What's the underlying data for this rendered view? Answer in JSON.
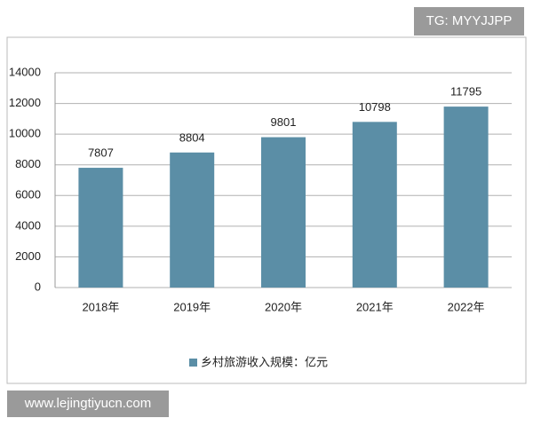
{
  "chart_data": {
    "type": "bar",
    "categories": [
      "2018年",
      "2019年",
      "2020年",
      "2021年",
      "2022年"
    ],
    "series": [
      {
        "name": "乡村旅游收入规模：亿元",
        "color": "#5b8ea6",
        "values": [
          7807,
          8804,
          9801,
          10798,
          11795
        ]
      }
    ],
    "ylim": [
      0,
      14000
    ],
    "yticks": [
      0,
      2000,
      4000,
      6000,
      8000,
      10000,
      12000,
      14000
    ],
    "grid": true,
    "legend": "bottom"
  },
  "watermarks": [
    "TG: MYYJJPP",
    "www.lejingtiyucn.com"
  ]
}
